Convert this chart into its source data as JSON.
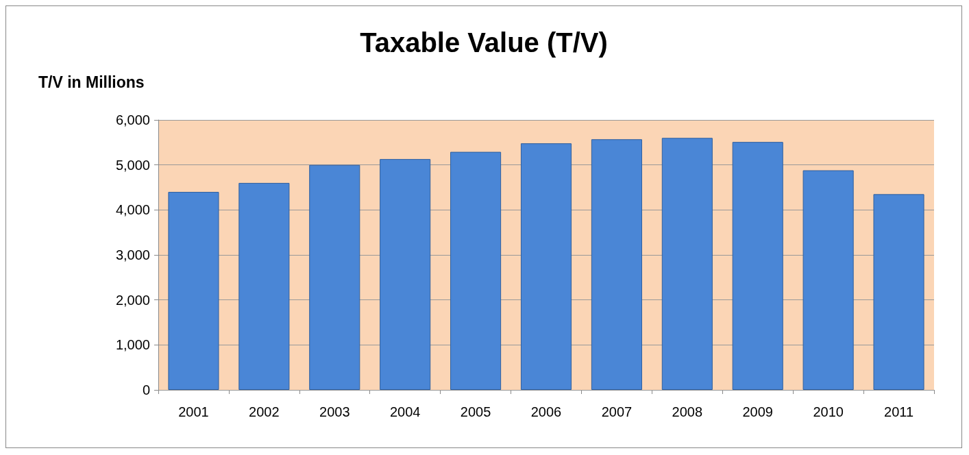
{
  "chart_data": {
    "type": "bar",
    "title": "Taxable Value (T/V)",
    "ylabel": "T/V in Millions",
    "categories": [
      "2001",
      "2002",
      "2003",
      "2004",
      "2005",
      "2006",
      "2007",
      "2008",
      "2009",
      "2010",
      "2011"
    ],
    "values": [
      4400,
      4600,
      5000,
      5130,
      5290,
      5480,
      5570,
      5600,
      5510,
      4880,
      4350
    ],
    "color": "#4a86d6",
    "ylim": [
      0,
      6000
    ],
    "yticks": [
      0,
      {
        "value": 1000,
        "label": "1,000"
      },
      {
        "value": 2000,
        "label": "2,000"
      },
      {
        "value": 3000,
        "label": "3,000"
      },
      {
        "value": 4000,
        "label": "4,000"
      },
      {
        "value": 5000,
        "label": "5,000"
      },
      {
        "value": 6000,
        "label": "6,000"
      }
    ],
    "bands": [
      {
        "axis": "y",
        "from": 0,
        "to": 6000,
        "color": "#fbd5b5"
      }
    ],
    "grid": "y"
  }
}
